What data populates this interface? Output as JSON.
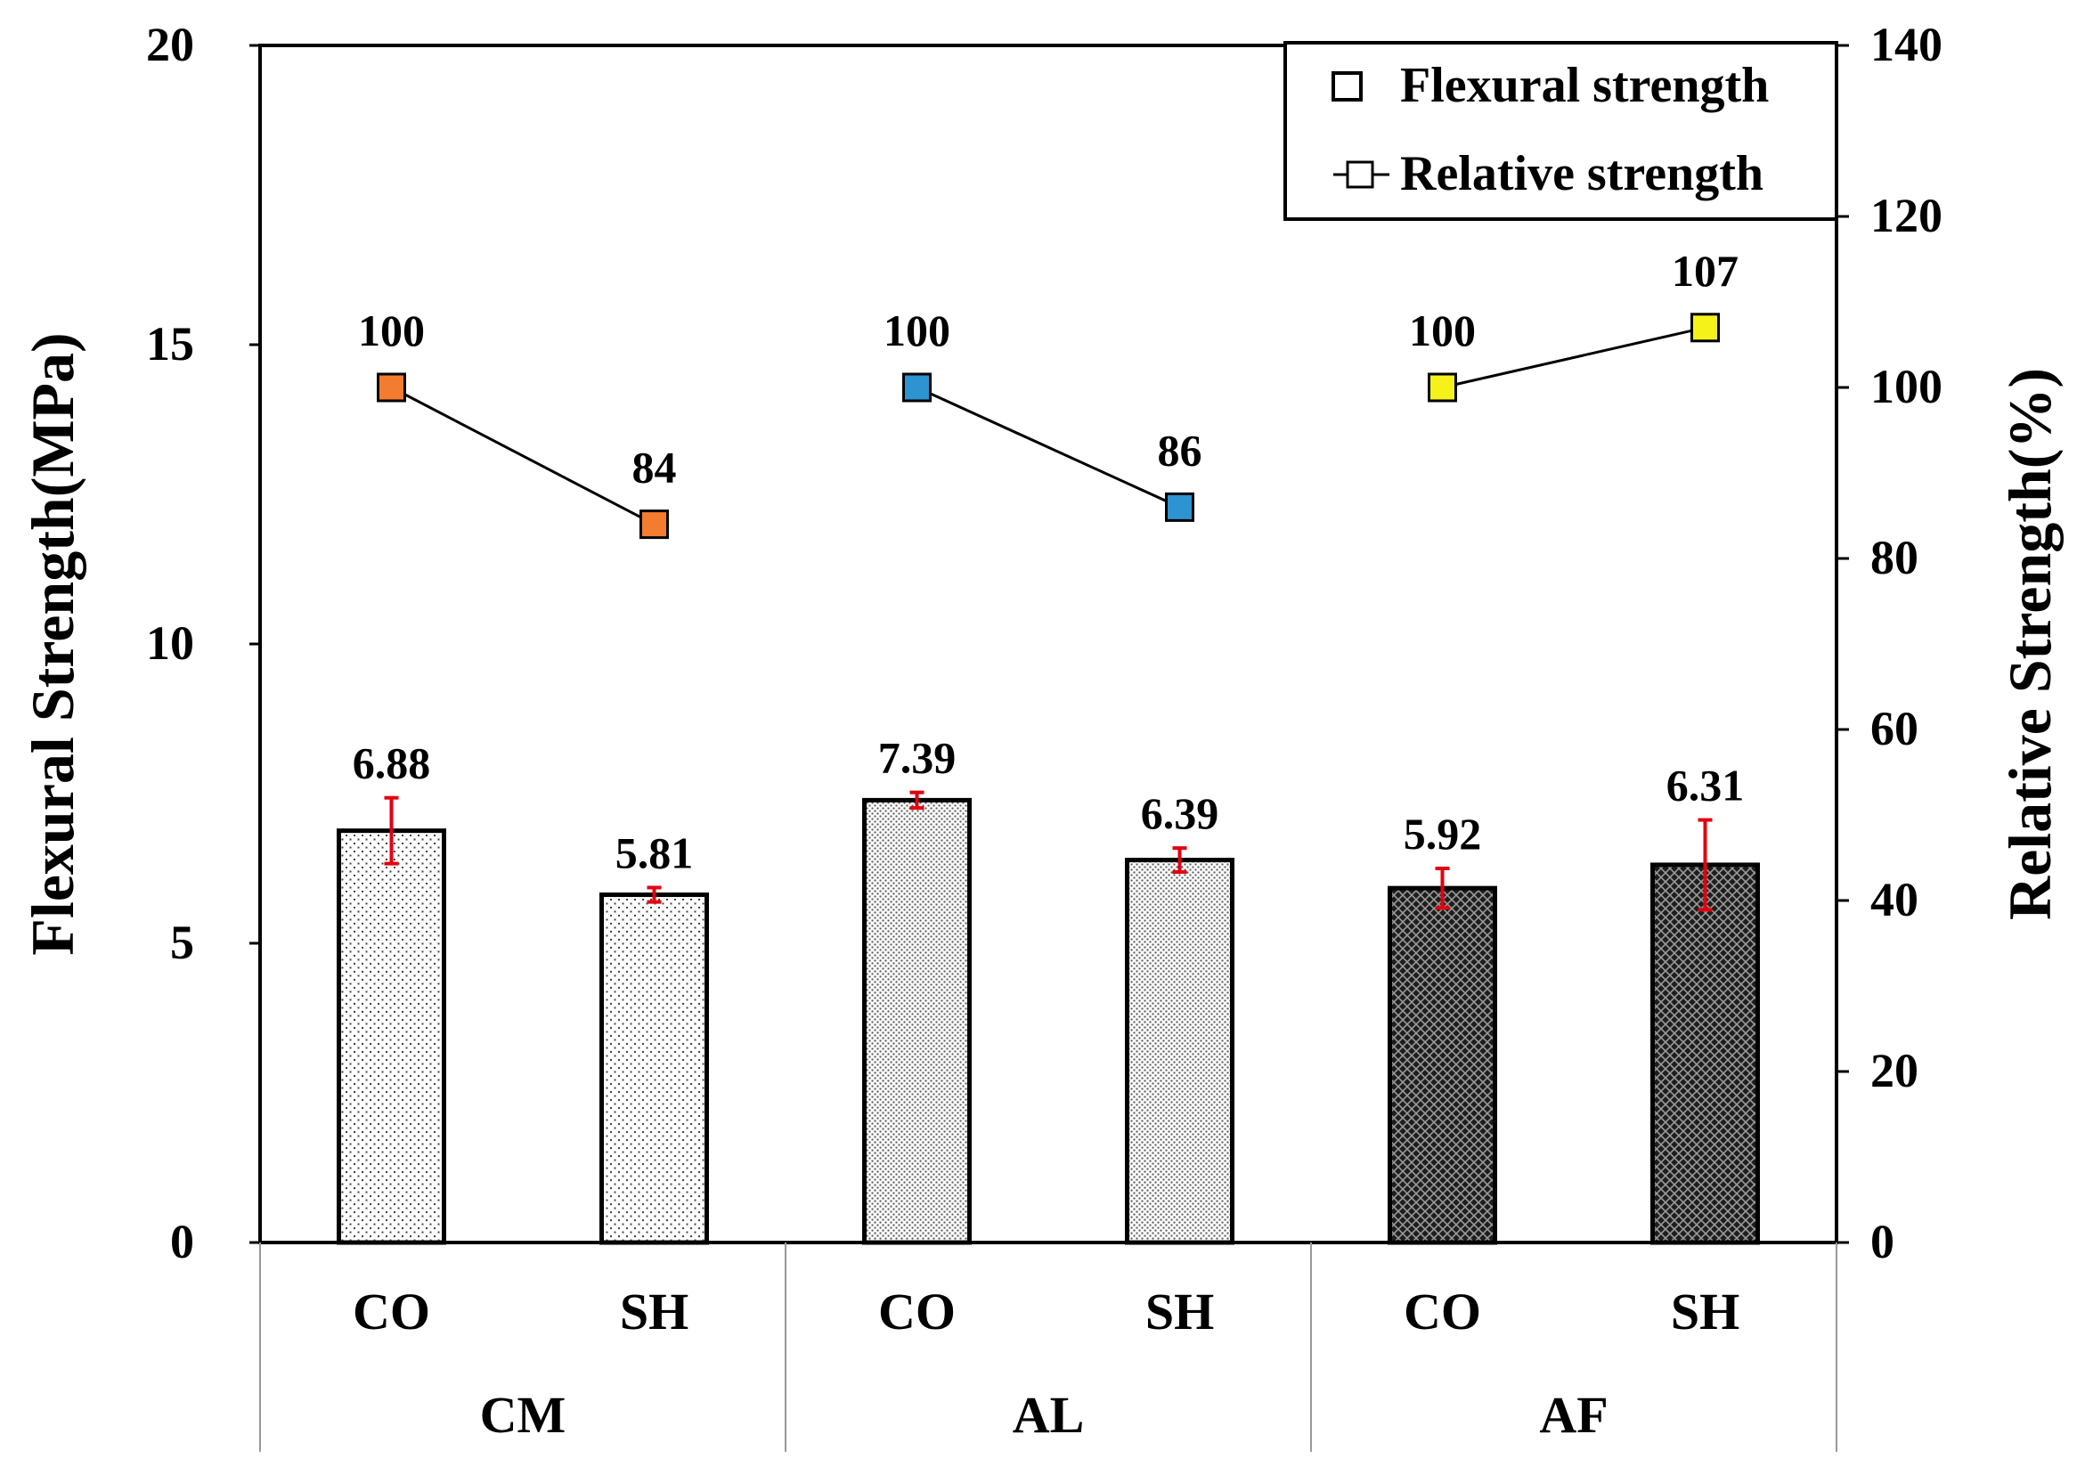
{
  "chart_data": {
    "type": "bar",
    "title": "",
    "groups": [
      "CM",
      "AL",
      "AF"
    ],
    "categories": [
      "CO",
      "SH",
      "CO",
      "SH",
      "CO",
      "SH"
    ],
    "ylabel": "Flexural Strength(MPa)",
    "y2label": "Relative Strength(%)",
    "ylim": [
      0,
      20
    ],
    "yticks": [
      0,
      5,
      10,
      15,
      20
    ],
    "y2lim": [
      0,
      140
    ],
    "y2ticks": [
      0,
      20,
      40,
      60,
      80,
      100,
      120,
      140
    ],
    "series": [
      {
        "name": "Flexural strength",
        "type": "bar",
        "axis": "left",
        "values": [
          6.88,
          5.81,
          7.39,
          6.39,
          5.92,
          6.31
        ],
        "labels": [
          "6.88",
          "5.81",
          "7.39",
          "6.39",
          "5.92",
          "6.31"
        ],
        "errors": [
          0.55,
          0.12,
          0.13,
          0.2,
          0.33,
          0.75
        ]
      },
      {
        "name": "Relative strength",
        "type": "line",
        "axis": "right",
        "values": [
          100,
          84,
          100,
          86,
          100,
          107
        ],
        "labels": [
          "100",
          "84",
          "100",
          "86",
          "100",
          "107"
        ],
        "marker_colors": [
          "#f47c30",
          "#f47c30",
          "#2e93d1",
          "#2e93d1",
          "#f5f21a",
          "#f5f21a"
        ]
      }
    ],
    "legend": {
      "position": "top-right",
      "entries": [
        "Flexural strength",
        "Relative strength"
      ]
    },
    "grid": false
  }
}
